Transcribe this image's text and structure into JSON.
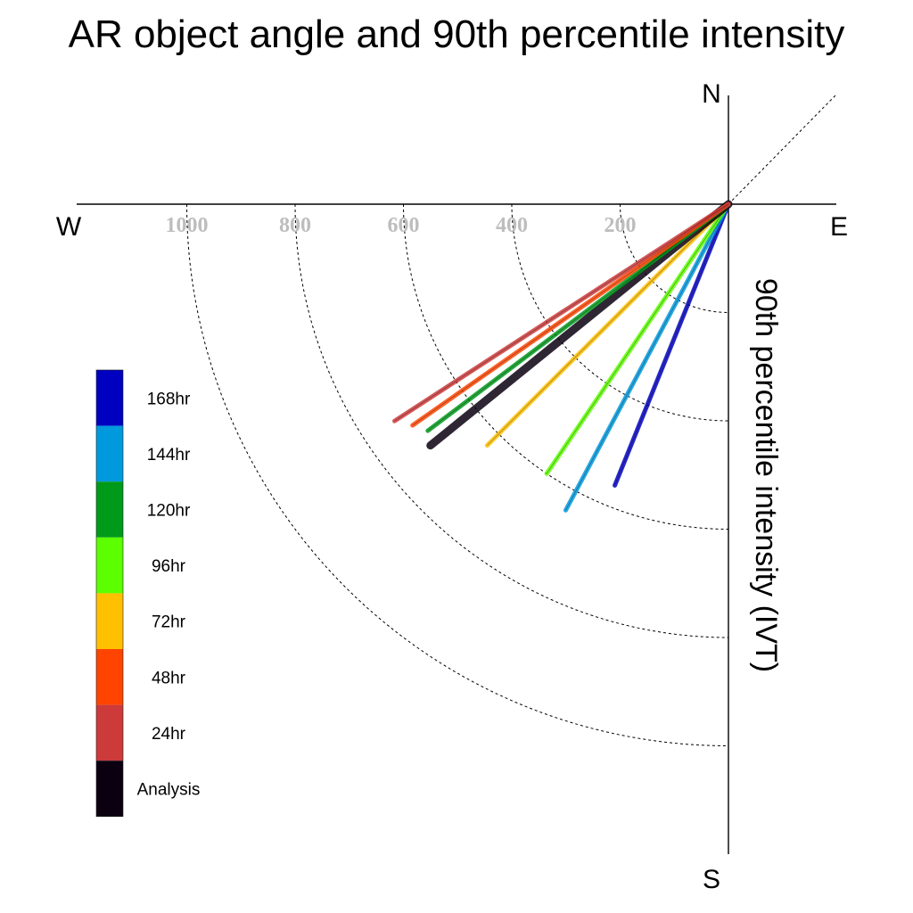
{
  "chart_data": {
    "type": "polar-vector",
    "title": "AR object angle and 90th percentile intensity",
    "ylabel": "90th percentile intensity (IVT)",
    "directions": {
      "north": "N",
      "south": "S",
      "east": "E",
      "west": "W"
    },
    "radial_ticks": [
      "1000",
      "800",
      "600",
      "400",
      "200"
    ],
    "radial_tick_values": [
      1000,
      800,
      600,
      400,
      200
    ],
    "rlim": [
      0,
      1200
    ],
    "series": [
      {
        "name": "168hr",
        "color": "#0000c0",
        "angle_deg_from_south_clockwise": 22,
        "intensity": 560
      },
      {
        "name": "144hr",
        "color": "#0099dd",
        "angle_deg_from_south_clockwise": 28,
        "intensity": 640
      },
      {
        "name": "96hr",
        "color": "#5cff00",
        "angle_deg_from_south_clockwise": 34,
        "intensity": 600
      },
      {
        "name": "72hr",
        "color": "#ffc000",
        "angle_deg_from_south_clockwise": 45,
        "intensity": 630
      },
      {
        "name": "Analysis",
        "color": "#0a0010",
        "angle_deg_from_south_clockwise": 51,
        "intensity": 708
      },
      {
        "name": "120hr",
        "color": "#009a1a",
        "angle_deg_from_south_clockwise": 53,
        "intensity": 695
      },
      {
        "name": "48hr",
        "color": "#ff4400",
        "angle_deg_from_south_clockwise": 55,
        "intensity": 712
      },
      {
        "name": "24hr",
        "color": "#cc3a3a",
        "angle_deg_from_south_clockwise": 57,
        "intensity": 735
      }
    ],
    "legend": [
      {
        "label": "168hr",
        "color": "#0000c0"
      },
      {
        "label": "144hr",
        "color": "#0099dd"
      },
      {
        "label": "120hr",
        "color": "#009a1a"
      },
      {
        "label": "96hr",
        "color": "#5cff00"
      },
      {
        "label": "72hr",
        "color": "#ffc000"
      },
      {
        "label": "48hr",
        "color": "#ff4400"
      },
      {
        "label": "24hr",
        "color": "#cc3a3a"
      },
      {
        "label": "Analysis",
        "color": "#0a0010"
      }
    ],
    "legend_placement": "left"
  }
}
